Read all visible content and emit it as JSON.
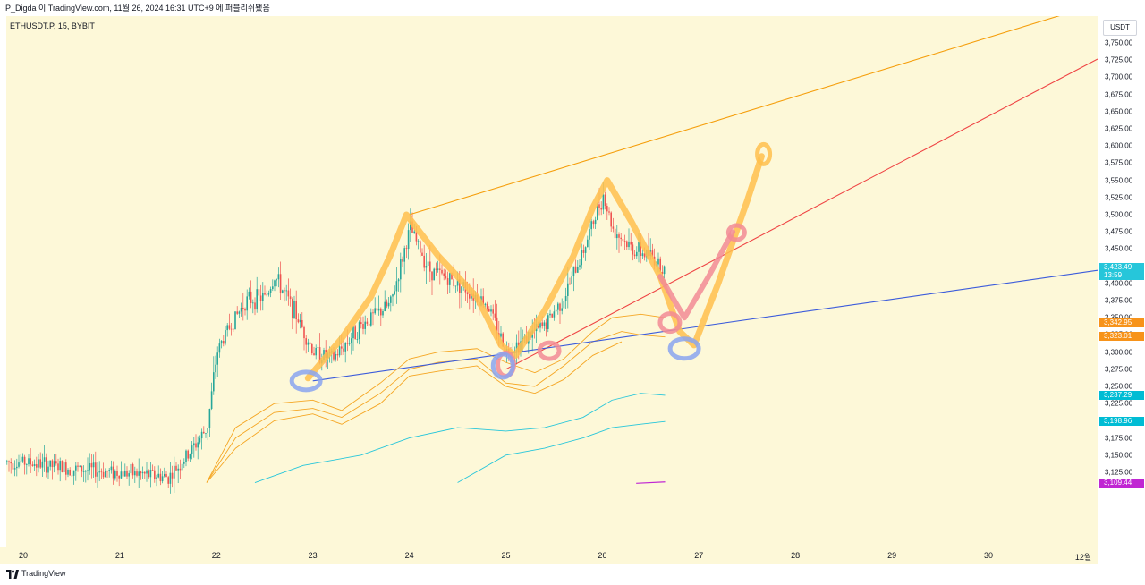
{
  "header": {
    "publish_info": "P_Digda 이 TradingView.com, 11월 26, 2024 16:31 UTC+9 에 퍼블리쉬됐음"
  },
  "symbol": {
    "label": "ETHUSDT.P, 15, BYBIT"
  },
  "price_axis": {
    "currency_button": "USDT",
    "ticks": [
      "3,750.00",
      "3,725.00",
      "3,700.00",
      "3,675.00",
      "3,650.00",
      "3,625.00",
      "3,600.00",
      "3,575.00",
      "3,550.00",
      "3,525.00",
      "3,500.00",
      "3,475.00",
      "3,450.00",
      "3,425.00",
      "3,400.00",
      "3,375.00",
      "3,350.00",
      "3,325.00",
      "3,300.00",
      "3,275.00",
      "3,250.00",
      "3,225.00",
      "3,200.00",
      "3,175.00",
      "3,150.00",
      "3,125.00"
    ],
    "tick_values": [
      3750,
      3725,
      3700,
      3675,
      3650,
      3625,
      3600,
      3575,
      3550,
      3525,
      3500,
      3475,
      3450,
      3425,
      3400,
      3375,
      3350,
      3325,
      3300,
      3275,
      3250,
      3225,
      3200,
      3175,
      3150,
      3125
    ],
    "price_tags": [
      {
        "text": "3,423.49",
        "value": 3423.49,
        "color": "#26c6da"
      },
      {
        "text": "13:59",
        "value": 3412,
        "color": "#26c6da"
      },
      {
        "text": "3,342.95",
        "value": 3342.95,
        "color": "#f7931a"
      },
      {
        "text": "3,323.01",
        "value": 3323.01,
        "color": "#f7931a"
      },
      {
        "text": "3,237.29",
        "value": 3237.29,
        "color": "#00bcd4"
      },
      {
        "text": "3,198.96",
        "value": 3198.96,
        "color": "#00bcd4"
      },
      {
        "text": "3,109.44",
        "value": 3109.44,
        "color": "#c026d3"
      }
    ]
  },
  "time_axis": {
    "labels": [
      "20",
      "21",
      "22",
      "23",
      "24",
      "25",
      "26",
      "27",
      "28",
      "29",
      "30",
      "12월"
    ]
  },
  "footer": {
    "brand": "TradingView"
  },
  "colors": {
    "background": "#fdf8d8",
    "up_candle": "#26a69a",
    "down_candle": "#ef5350",
    "resistance_line": "#f59e0b",
    "red_trendline": "#ef4444",
    "blue_trendline": "#3b5bdb",
    "hand_orange": "#ffc04d",
    "hand_pink": "#f28b95",
    "hand_blue": "#8aa4f0",
    "band_orange": "#f5a623",
    "band_cyan": "#26c6da"
  },
  "icons": {
    "logo": "tradingview-logo-icon"
  },
  "chart_data": {
    "type": "candlestick",
    "symbol": "ETHUSDT.P",
    "interval": "15",
    "exchange": "BYBIT",
    "ylim": [
      3110,
      3760
    ],
    "x_labels": [
      "20",
      "21",
      "22",
      "23",
      "24",
      "25",
      "26",
      "27",
      "28",
      "29",
      "30",
      "12월"
    ],
    "price_path": [
      [
        20.0,
        3140
      ],
      [
        20.5,
        3130
      ],
      [
        21.0,
        3125
      ],
      [
        21.5,
        3118
      ],
      [
        21.7,
        3150
      ],
      [
        21.9,
        3190
      ],
      [
        22.0,
        3300
      ],
      [
        22.1,
        3330
      ],
      [
        22.3,
        3375
      ],
      [
        22.5,
        3380
      ],
      [
        22.6,
        3410
      ],
      [
        22.8,
        3360
      ],
      [
        23.0,
        3300
      ],
      [
        23.2,
        3290
      ],
      [
        23.5,
        3340
      ],
      [
        23.8,
        3370
      ],
      [
        24.0,
        3480
      ],
      [
        24.2,
        3420
      ],
      [
        24.5,
        3400
      ],
      [
        24.8,
        3370
      ],
      [
        25.0,
        3300
      ],
      [
        25.2,
        3320
      ],
      [
        25.4,
        3340
      ],
      [
        25.6,
        3380
      ],
      [
        25.8,
        3450
      ],
      [
        26.0,
        3530
      ],
      [
        26.1,
        3480
      ],
      [
        26.3,
        3450
      ],
      [
        26.5,
        3440
      ],
      [
        26.65,
        3420
      ]
    ],
    "trendlines": [
      {
        "name": "resistance",
        "color": "#f59e0b",
        "from": [
          24.0,
          3500
        ],
        "to": [
          28.0,
          3672
        ]
      },
      {
        "name": "red-support",
        "color": "#ef4444",
        "from": [
          25.0,
          3275
        ],
        "to": [
          28.0,
          3496
        ]
      },
      {
        "name": "blue-support",
        "color": "#3b5bdb",
        "from": [
          23.0,
          3258
        ],
        "to": [
          28.0,
          3357
        ]
      }
    ],
    "current_price": 3423.49,
    "grid": false
  }
}
